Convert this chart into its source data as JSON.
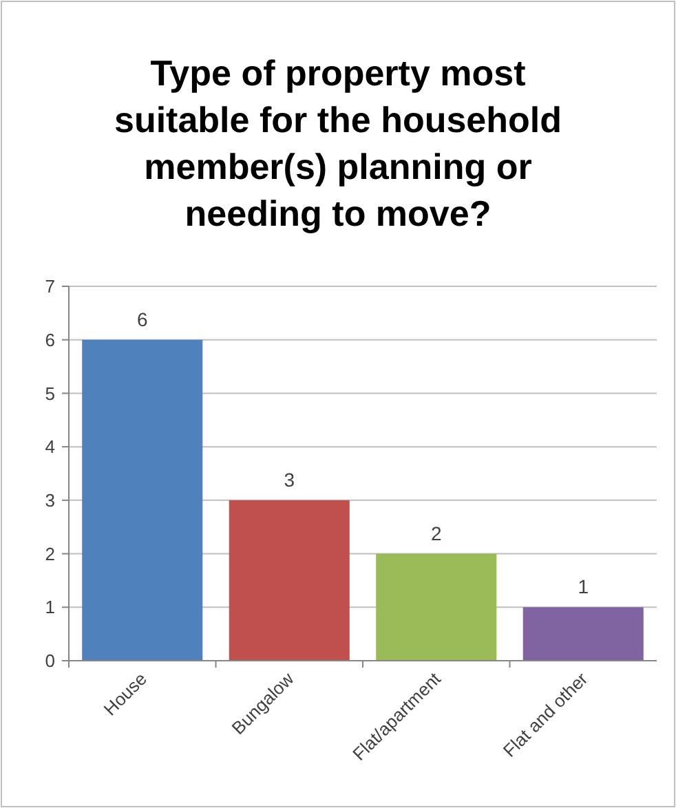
{
  "chart_data": {
    "type": "bar",
    "title": "Type of property most\nsuitable for the household\nmember(s) planning or\nneeding to move?",
    "categories": [
      "House",
      "Bungalow",
      "Flat/apartment",
      "Flat and other"
    ],
    "values": [
      6,
      3,
      2,
      1
    ],
    "colors": [
      "#4f81bd",
      "#c0504d",
      "#9bbb59",
      "#8064a2"
    ],
    "ylim": [
      0,
      7
    ],
    "yticks": [
      0,
      1,
      2,
      3,
      4,
      5,
      6,
      7
    ],
    "grid": "y",
    "data_labels": true
  }
}
